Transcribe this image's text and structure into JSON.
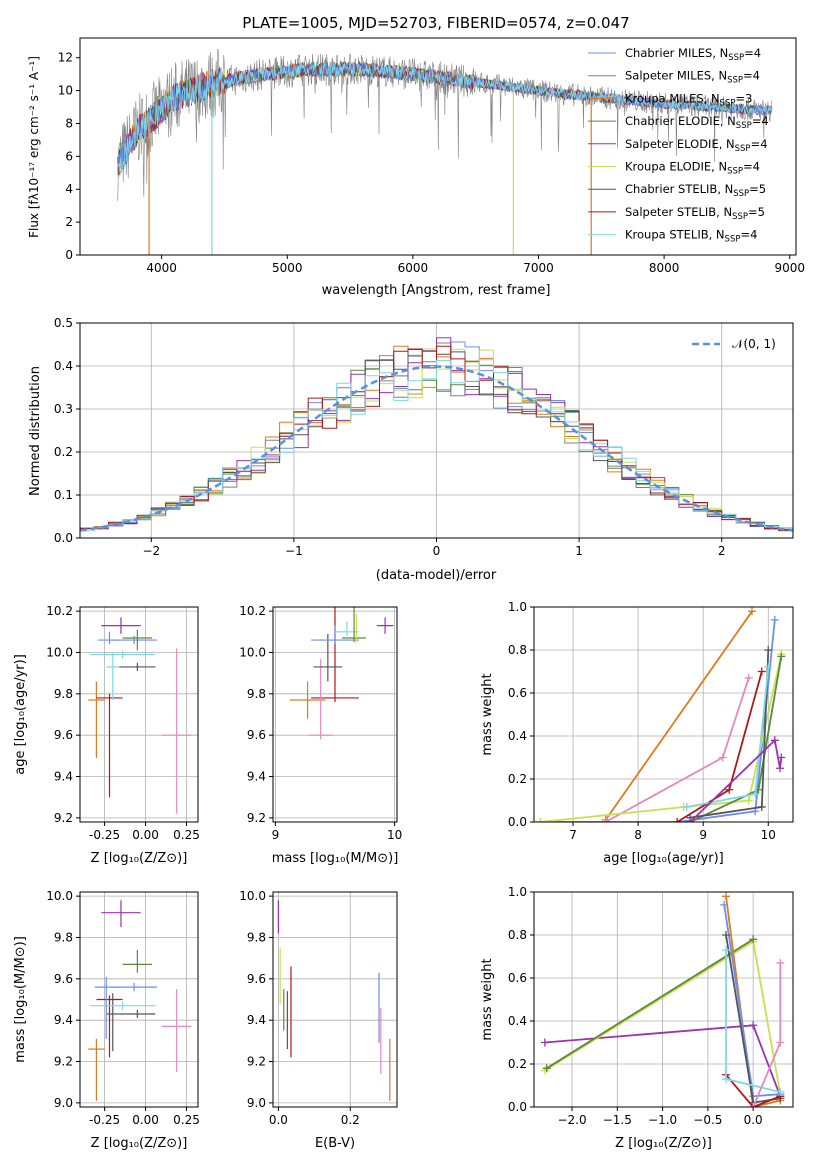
{
  "title": "PLATE=1005, MJD=52703, FIBERID=0574, z=0.047",
  "colors": {
    "Chabrier MILES": "#6a8ff0",
    "Salpeter MILES": "#808080",
    "Kroupa MILES": "#e07a1e",
    "Chabrier ELODIE": "#5a8a3a",
    "Salpeter ELODIE": "#9b30b5",
    "Kroupa ELODIE": "#c8e050",
    "Chabrier STELIB": "#555555",
    "Salpeter STELIB": "#b01818",
    "Kroupa STELIB": "#7fd8e6",
    "pink": "#e887bd",
    "gaussian": "#5b8fe0"
  },
  "chart_data": [
    {
      "type": "line",
      "xlabel": "wavelength [Angstrom, rest frame]",
      "ylabel": "Flux [fλ10⁻¹⁷ erg cm⁻² s⁻¹ A⁻¹]",
      "xlim": [
        3350,
        9050
      ],
      "ylim": [
        0,
        13.2
      ],
      "xticks": [
        "4000",
        "5000",
        "6000",
        "7000",
        "8000",
        "9000"
      ],
      "yticks": [
        "0",
        "2",
        "4",
        "6",
        "8",
        "10",
        "12"
      ],
      "legend": [
        {
          "name": "Chabrier MILES, N",
          "sub": "SSP",
          "val": "=4"
        },
        {
          "name": "Salpeter MILES, N",
          "sub": "SSP",
          "val": "=4"
        },
        {
          "name": "Kroupa MILES, N",
          "sub": "SSP",
          "val": "=3"
        },
        {
          "name": "Chabrier ELODIE, N",
          "sub": "SSP",
          "val": "=4"
        },
        {
          "name": "Salpeter ELODIE, N",
          "sub": "SSP",
          "val": "=4"
        },
        {
          "name": "Kroupa ELODIE, N",
          "sub": "SSP",
          "val": "=4"
        },
        {
          "name": "Chabrier STELIB, N",
          "sub": "SSP",
          "val": "=5"
        },
        {
          "name": "Salpeter STELIB, N",
          "sub": "SSP",
          "val": "=5"
        },
        {
          "name": "Kroupa STELIB, N",
          "sub": "SSP",
          "val": "=4"
        }
      ],
      "continuum": [
        [
          3650,
          5.5
        ],
        [
          3800,
          7.5
        ],
        [
          3950,
          8.5
        ],
        [
          4100,
          9.6
        ],
        [
          4400,
          10.4
        ],
        [
          4800,
          11.0
        ],
        [
          5200,
          11.3
        ],
        [
          5600,
          11.3
        ],
        [
          6000,
          11.0
        ],
        [
          6400,
          10.6
        ],
        [
          6800,
          10.2
        ],
        [
          7200,
          9.8
        ],
        [
          7600,
          9.5
        ],
        [
          8000,
          9.2
        ],
        [
          8400,
          9.0
        ],
        [
          8800,
          8.8
        ]
      ],
      "spectrum_range": [
        3650,
        8860
      ],
      "dropouts": [
        {
          "x": 3900,
          "series": "Kroupa MILES"
        },
        {
          "x": 4400,
          "series": "Kroupa STELIB"
        },
        {
          "x": 6800,
          "series": "Kroupa ELODIE"
        },
        {
          "x": 7420,
          "series": "Kroupa MILES"
        }
      ]
    },
    {
      "type": "bar",
      "xlabel": "(data-model)/error",
      "ylabel": "Normed distribution",
      "xlim": [
        -2.5,
        2.5
      ],
      "ylim": [
        0,
        0.5
      ],
      "xticks": [
        "−2",
        "−1",
        "0",
        "1",
        "2"
      ],
      "yticks": [
        "0.0",
        "0.1",
        "0.2",
        "0.3",
        "0.4",
        "0.5"
      ],
      "legend": [
        {
          "name": "𝒩(0, 1)"
        }
      ],
      "bin_width": 0.1,
      "series": [
        "Chabrier MILES",
        "Salpeter MILES",
        "Kroupa MILES",
        "Chabrier ELODIE",
        "Salpeter ELODIE",
        "Kroupa ELODIE",
        "Chabrier STELIB",
        "Salpeter STELIB",
        "Kroupa STELIB"
      ]
    },
    {
      "type": "scatter",
      "xlabel": "Z [log₁₀(Z/Z⊙)]",
      "ylabel": "age  [log₁₀(age/yr)]",
      "xlim": [
        -0.4,
        0.32
      ],
      "ylim": [
        9.18,
        10.22
      ],
      "xticks": [
        [
          "-0.25",
          -0.25
        ],
        [
          "0.00",
          0
        ],
        [
          "0.25",
          0.25
        ]
      ],
      "yticks": [
        [
          "9.2",
          9.2
        ],
        [
          "9.4",
          9.4
        ],
        [
          "9.6",
          9.6
        ],
        [
          "9.8",
          9.8
        ],
        [
          "10.0",
          10.0
        ],
        [
          "10.2",
          10.2
        ]
      ],
      "points": [
        {
          "x": -0.3,
          "xe": 0.05,
          "y": 9.77,
          "ye": 0.09,
          "ye2": 0.28,
          "c": "Kroupa MILES"
        },
        {
          "x": -0.22,
          "xe": 0.08,
          "y": 9.78,
          "ye": 0.0,
          "ye2": 0.48,
          "c": "Salpeter STELIB"
        },
        {
          "x": -0.2,
          "xe": 0.04,
          "y": 9.93,
          "ye": 0.07,
          "ye2": 0.16,
          "c": "Kroupa STELIB"
        },
        {
          "x": -0.14,
          "xe": 0.2,
          "y": 9.99,
          "ye": 0.0,
          "ye2": 0.0,
          "c": "Kroupa STELIB"
        },
        {
          "x": -0.22,
          "xe": 0.07,
          "y": 10.06,
          "ye": 0.04,
          "ye2": 0.0,
          "c": "Chabrier MILES"
        },
        {
          "x": -0.05,
          "xe": 0.11,
          "y": 9.93,
          "ye": 0.0,
          "ye2": 0.0,
          "c": "Chabrier STELIB"
        },
        {
          "x": -0.07,
          "xe": 0.14,
          "y": 10.06,
          "ye": 0.0,
          "ye2": 0.0,
          "c": "Chabrier MILES"
        },
        {
          "x": -0.05,
          "xe": 0.09,
          "y": 10.07,
          "ye": 0.04,
          "ye2": 0.06,
          "c": "Chabrier ELODIE"
        },
        {
          "x": -0.15,
          "xe": 0.12,
          "y": 10.13,
          "ye": 0.04,
          "ye2": 0.04,
          "c": "Salpeter ELODIE"
        },
        {
          "x": 0.19,
          "xe": 0.09,
          "y": 9.6,
          "ye": 0.42,
          "ye2": 0.38,
          "c": "pink"
        }
      ]
    },
    {
      "type": "scatter",
      "xlabel": "mass [log₁₀(M/M⊙)]",
      "ylabel": "",
      "xlim": [
        8.98,
        10.02
      ],
      "ylim": [
        9.18,
        10.22
      ],
      "xticks": [
        [
          "9",
          9
        ],
        [
          "10",
          10
        ]
      ],
      "yticks": [
        [
          "9.2",
          9.2
        ],
        [
          "9.4",
          9.4
        ],
        [
          "9.6",
          9.6
        ],
        [
          "9.8",
          9.8
        ],
        [
          "10.0",
          10.0
        ],
        [
          "10.2",
          10.2
        ]
      ],
      "points": [
        {
          "x": 9.27,
          "xe": 0.15,
          "y": 9.77,
          "ye": 0.09,
          "ye2": 0.09,
          "c": "Kroupa MILES"
        },
        {
          "x": 9.5,
          "xe": 0.2,
          "y": 9.78,
          "ye": 0.48,
          "ye2": 0.0,
          "c": "Salpeter STELIB"
        },
        {
          "x": 9.38,
          "xe": 0.1,
          "y": 9.6,
          "ye": 0.37,
          "ye2": 0.0,
          "c": "pink"
        },
        {
          "x": 9.44,
          "xe": 0.12,
          "y": 9.93,
          "ye": 0.16,
          "ye2": 0.07,
          "c": "Chabrier STELIB"
        },
        {
          "x": 9.5,
          "xe": 0.2,
          "y": 10.06,
          "ye": 0.07,
          "ye2": 0.0,
          "c": "Chabrier MILES"
        },
        {
          "x": 9.6,
          "xe": 0.1,
          "y": 10.1,
          "ye": 0.05,
          "ye2": 0.0,
          "c": "Kroupa STELIB"
        },
        {
          "x": 9.66,
          "xe": 0.1,
          "y": 10.07,
          "ye": 0.18,
          "ye2": 0.0,
          "c": "Chabrier ELODIE"
        },
        {
          "x": 9.68,
          "xe": 0.0,
          "y": 10.07,
          "ye": 0.12,
          "ye2": 0.0,
          "c": "Kroupa ELODIE"
        },
        {
          "x": 9.92,
          "xe": 0.07,
          "y": 10.13,
          "ye": 0.04,
          "ye2": 0.04,
          "c": "Salpeter ELODIE"
        }
      ]
    },
    {
      "type": "line",
      "xlabel": "age  [log₁₀(age/yr)]",
      "ylabel": "mass weight",
      "xlim": [
        6.4,
        10.38
      ],
      "ylim": [
        0,
        1
      ],
      "xticks": [
        [
          "7",
          7
        ],
        [
          "8",
          8
        ],
        [
          "9",
          9
        ],
        [
          "10",
          10
        ]
      ],
      "yticks": [
        [
          "0.0",
          0
        ],
        [
          "0.2",
          0.2
        ],
        [
          "0.4",
          0.4
        ],
        [
          "0.6",
          0.6
        ],
        [
          "0.8",
          0.8
        ],
        [
          "1.0",
          1
        ]
      ],
      "series": [
        {
          "c": "Kroupa MILES",
          "x": [
            7.5,
            9.75
          ],
          "y": [
            0.01,
            0.98
          ]
        },
        {
          "c": "pink",
          "x": [
            7.5,
            9.3,
            9.7
          ],
          "y": [
            0.0,
            0.3,
            0.67
          ]
        },
        {
          "c": "Chabrier MILES",
          "x": [
            6.5,
            8.6,
            9.8,
            10.1
          ],
          "y": [
            0.0,
            0.0,
            0.05,
            0.94
          ]
        },
        {
          "c": "Kroupa ELODIE",
          "x": [
            6.5,
            8.7,
            9.7,
            10.2
          ],
          "y": [
            0.0,
            0.07,
            0.1,
            0.78
          ]
        },
        {
          "c": "Chabrier ELODIE",
          "x": [
            8.8,
            9.85,
            10.2
          ],
          "y": [
            0.0,
            0.15,
            0.77
          ]
        },
        {
          "c": "Salpeter STELIB",
          "x": [
            8.6,
            9.4,
            9.9
          ],
          "y": [
            0.0,
            0.15,
            0.7
          ]
        },
        {
          "c": "Chabrier STELIB",
          "x": [
            8.8,
            9.9,
            10.0
          ],
          "y": [
            0.02,
            0.07,
            0.8
          ]
        },
        {
          "c": "Kroupa STELIB",
          "x": [
            8.75,
            9.8,
            10.0
          ],
          "y": [
            0.07,
            0.13,
            0.72
          ]
        },
        {
          "c": "Salpeter ELODIE",
          "x": [
            8.8,
            10.1,
            10.18,
            10.2
          ],
          "y": [
            0.0,
            0.38,
            0.25,
            0.3
          ]
        }
      ]
    },
    {
      "type": "scatter",
      "xlabel": "Z [log₁₀(Z/Z⊙)]",
      "ylabel": "mass [log₁₀(M/M⊙)]",
      "xlim": [
        -0.4,
        0.32
      ],
      "ylim": [
        8.98,
        10.02
      ],
      "xticks": [
        [
          "-0.25",
          -0.25
        ],
        [
          "0.00",
          0
        ],
        [
          "0.25",
          0.25
        ]
      ],
      "yticks": [
        [
          "9.0",
          9.0
        ],
        [
          "9.2",
          9.2
        ],
        [
          "9.4",
          9.4
        ],
        [
          "9.6",
          9.6
        ],
        [
          "9.8",
          9.8
        ],
        [
          "10.0",
          10.0
        ]
      ],
      "points": [
        {
          "x": -0.3,
          "xe": 0.05,
          "y": 9.26,
          "ye": 0.05,
          "ye2": 0.25,
          "c": "Kroupa MILES"
        },
        {
          "x": -0.22,
          "xe": 0.08,
          "y": 9.5,
          "ye": 0.0,
          "ye2": 0.28,
          "c": "Salpeter STELIB"
        },
        {
          "x": -0.2,
          "xe": 0.04,
          "y": 9.43,
          "ye": 0.1,
          "ye2": 0.18,
          "c": "Chabrier STELIB"
        },
        {
          "x": -0.14,
          "xe": 0.2,
          "y": 9.47,
          "ye": 0.0,
          "ye2": 0.0,
          "c": "Kroupa STELIB"
        },
        {
          "x": -0.24,
          "xe": 0.07,
          "y": 9.56,
          "ye": 0.05,
          "ye2": 0.25,
          "c": "Chabrier MILES"
        },
        {
          "x": -0.07,
          "xe": 0.14,
          "y": 9.56,
          "ye": 0.0,
          "ye2": 0.0,
          "c": "Chabrier MILES"
        },
        {
          "x": -0.05,
          "xe": 0.11,
          "y": 9.43,
          "ye": 0.0,
          "ye2": 0.0,
          "c": "Chabrier STELIB"
        },
        {
          "x": -0.05,
          "xe": 0.09,
          "y": 9.67,
          "ye": 0.07,
          "ye2": 0.04,
          "c": "Chabrier ELODIE"
        },
        {
          "x": -0.15,
          "xe": 0.12,
          "y": 9.92,
          "ye": 0.06,
          "ye2": 0.07,
          "c": "Salpeter ELODIE"
        },
        {
          "x": 0.19,
          "xe": 0.09,
          "y": 9.37,
          "ye": 0.18,
          "ye2": 0.22,
          "c": "pink"
        }
      ]
    },
    {
      "type": "scatter",
      "xlabel": "E(B-V)",
      "ylabel": "",
      "xlim": [
        -0.015,
        0.33
      ],
      "ylim": [
        8.98,
        10.02
      ],
      "xticks": [
        [
          "0.0",
          0
        ],
        [
          "0.2",
          0.2
        ]
      ],
      "yticks": [
        [
          "9.0",
          9.0
        ],
        [
          "9.2",
          9.2
        ],
        [
          "9.4",
          9.4
        ],
        [
          "9.6",
          9.6
        ],
        [
          "9.8",
          9.8
        ],
        [
          "10.0",
          10.0
        ]
      ],
      "points": [
        {
          "x": 0.0,
          "xe": 0,
          "y": 9.9,
          "ye": 0.08,
          "ye2": 0.08,
          "c": "Salpeter ELODIE"
        },
        {
          "x": 0.005,
          "xe": 0,
          "y": 9.6,
          "ye": 0.15,
          "ye2": 0.12,
          "c": "Kroupa ELODIE"
        },
        {
          "x": 0.015,
          "xe": 0,
          "y": 9.45,
          "ye": 0.1,
          "ye2": 0.1,
          "c": "Chabrier ELODIE"
        },
        {
          "x": 0.025,
          "xe": 0,
          "y": 9.4,
          "ye": 0.14,
          "ye2": 0.14,
          "c": "Chabrier STELIB"
        },
        {
          "x": 0.035,
          "xe": 0,
          "y": 9.44,
          "ye": 0.22,
          "ye2": 0.22,
          "c": "Salpeter STELIB"
        },
        {
          "x": 0.28,
          "xe": 0,
          "y": 9.46,
          "ye": 0.17,
          "ye2": 0.17,
          "c": "Chabrier MILES"
        },
        {
          "x": 0.285,
          "xe": 0,
          "y": 9.3,
          "ye": 0.16,
          "ye2": 0.16,
          "c": "pink"
        },
        {
          "x": 0.31,
          "xe": 0,
          "y": 9.16,
          "ye": 0.15,
          "ye2": 0.15,
          "c": "Kroupa MILES"
        }
      ]
    },
    {
      "type": "line",
      "xlabel": "Z [log₁₀(Z/Z⊙)]",
      "ylabel": "mass weight",
      "xlim": [
        -2.42,
        0.44
      ],
      "ylim": [
        0,
        1
      ],
      "xticks": [
        [
          "−2.0",
          -2.0
        ],
        [
          "−1.5",
          -1.5
        ],
        [
          "−1.0",
          -1.0
        ],
        [
          "−0.5",
          -0.5
        ],
        [
          "0.0",
          0
        ]
      ],
      "yticks": [
        [
          "0.0",
          0
        ],
        [
          "0.2",
          0.2
        ],
        [
          "0.4",
          0.4
        ],
        [
          "0.6",
          0.6
        ],
        [
          "0.8",
          0.8
        ],
        [
          "1.0",
          1
        ]
      ],
      "series": [
        {
          "c": "Salpeter ELODIE",
          "x": [
            -2.3,
            0.0,
            0.3
          ],
          "y": [
            0.3,
            0.38,
            0.05
          ]
        },
        {
          "c": "Kroupa ELODIE",
          "x": [
            -2.3,
            0.0,
            0.3
          ],
          "y": [
            0.17,
            0.77,
            0.06
          ]
        },
        {
          "c": "Chabrier ELODIE",
          "x": [
            -2.28,
            0.0
          ],
          "y": [
            0.18,
            0.78
          ]
        },
        {
          "c": "Kroupa MILES",
          "x": [
            -0.3,
            0.0,
            0.3
          ],
          "y": [
            0.98,
            0.0,
            0.03
          ]
        },
        {
          "c": "Chabrier MILES",
          "x": [
            -0.32,
            0.0,
            0.3
          ],
          "y": [
            0.94,
            0.05,
            0.06
          ]
        },
        {
          "c": "Chabrier STELIB",
          "x": [
            -0.3,
            0.0,
            0.3
          ],
          "y": [
            0.8,
            0.02,
            0.04
          ]
        },
        {
          "c": "Salpeter STELIB",
          "x": [
            -0.3,
            0.0,
            0.3
          ],
          "y": [
            0.15,
            0.0,
            0.05
          ]
        },
        {
          "c": "Kroupa STELIB",
          "x": [
            -0.3,
            -0.3,
            0.3
          ],
          "y": [
            0.73,
            0.13,
            0.07
          ]
        },
        {
          "c": "pink",
          "x": [
            0.0,
            0.3,
            0.3
          ],
          "y": [
            0.0,
            0.3,
            0.67
          ]
        }
      ]
    }
  ]
}
